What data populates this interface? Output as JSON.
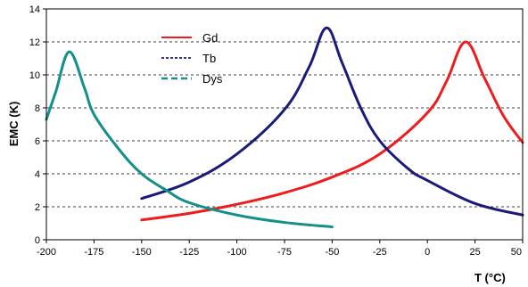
{
  "chart_data": {
    "type": "line",
    "xlabel": "T (°C)",
    "ylabel": "EMC (K)",
    "xlim": [
      -200,
      50
    ],
    "ylim": [
      0,
      14
    ],
    "x_ticks": [
      -200,
      -175,
      -150,
      -125,
      -100,
      -75,
      -50,
      -25,
      0,
      25,
      50
    ],
    "y_ticks": [
      0,
      2,
      4,
      6,
      8,
      10,
      12,
      14
    ],
    "grid": "horizontal dashed",
    "legend_position": "top-center",
    "series": [
      {
        "name": "Gd",
        "color": "#ee1c1c",
        "legend_dash": "solid",
        "points": [
          [
            -150,
            1.2
          ],
          [
            -125,
            1.6
          ],
          [
            -100,
            2.15
          ],
          [
            -75,
            2.85
          ],
          [
            -50,
            3.8
          ],
          [
            -25,
            5.2
          ],
          [
            0,
            7.7
          ],
          [
            10,
            9.6
          ],
          [
            20,
            12.0
          ],
          [
            30,
            9.8
          ],
          [
            40,
            7.5
          ],
          [
            50,
            5.9
          ]
        ]
      },
      {
        "name": "Tb",
        "color": "#1a1a7a",
        "legend_dash": "dashed",
        "points": [
          [
            -150,
            2.5
          ],
          [
            -125,
            3.5
          ],
          [
            -100,
            5.2
          ],
          [
            -75,
            7.9
          ],
          [
            -62,
            10.5
          ],
          [
            -53,
            12.85
          ],
          [
            -45,
            10.8
          ],
          [
            -35,
            8.0
          ],
          [
            -25,
            6.0
          ],
          [
            -10,
            4.3
          ],
          [
            0,
            3.6
          ],
          [
            25,
            2.2
          ],
          [
            50,
            1.5
          ]
        ]
      },
      {
        "name": "Dys",
        "color": "#129089",
        "legend_dash": "dashed",
        "points": [
          [
            -200,
            7.3
          ],
          [
            -195,
            9.0
          ],
          [
            -188,
            11.4
          ],
          [
            -180,
            9.2
          ],
          [
            -175,
            7.6
          ],
          [
            -162,
            5.5
          ],
          [
            -150,
            4.0
          ],
          [
            -137,
            3.0
          ],
          [
            -125,
            2.25
          ],
          [
            -100,
            1.5
          ],
          [
            -75,
            1.05
          ],
          [
            -50,
            0.78
          ]
        ]
      }
    ]
  }
}
